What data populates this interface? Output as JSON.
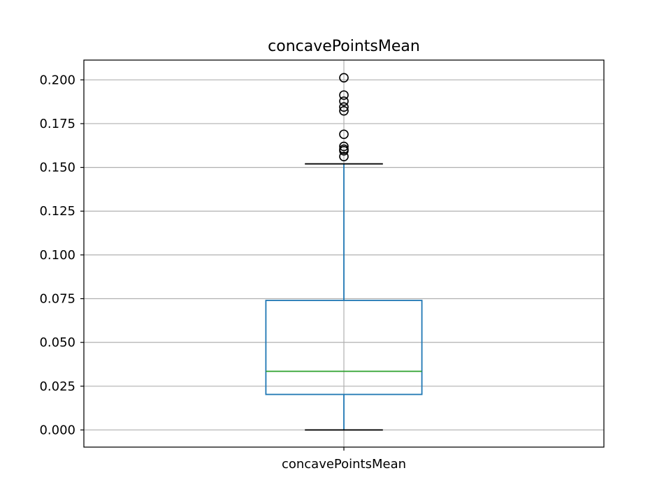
{
  "chart_data": {
    "type": "box",
    "title": "concavePointsMean",
    "xlabel": "",
    "ylabel": "",
    "categories": [
      "concavePointsMean"
    ],
    "ylim": [
      -0.0098,
      0.2113
    ],
    "yticks": [
      0.0,
      0.025,
      0.05,
      0.075,
      0.1,
      0.125,
      0.15,
      0.175,
      0.2
    ],
    "ytick_labels": [
      "0.000",
      "0.025",
      "0.050",
      "0.075",
      "0.100",
      "0.125",
      "0.150",
      "0.175",
      "0.200"
    ],
    "grid": true,
    "boxes": [
      {
        "name": "concavePointsMean",
        "whisker_low": 0.0,
        "q1": 0.0203,
        "median": 0.0335,
        "q3": 0.074,
        "whisker_high": 0.152,
        "outliers": [
          0.2012,
          0.1913,
          0.1878,
          0.1845,
          0.1823,
          0.1689,
          0.162,
          0.1604,
          0.1595,
          0.1562
        ]
      }
    ],
    "colors": {
      "box": "#1f77b4",
      "median": "#2ca02c",
      "whisker_cap": "#000000",
      "outlier": "#000000",
      "grid": "#b0b0b0",
      "axes": "#000000"
    }
  }
}
